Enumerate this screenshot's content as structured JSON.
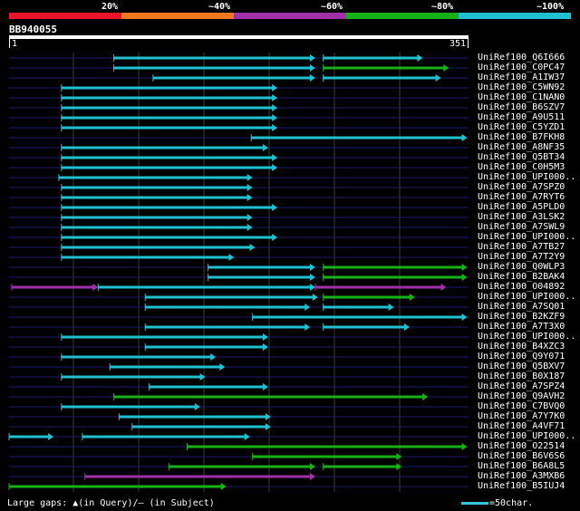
{
  "colors": {
    "c20": "#e8142c",
    "c40": "#f07820",
    "c60": "#a030a8",
    "c80": "#18b018",
    "c100": "#20c0d0",
    "query": "#ffffff",
    "background": "#000000",
    "hit_line": "#1a1a6a",
    "grid": "#3a3a3a"
  },
  "scale": {
    "labels": [
      "20%",
      "~40%",
      "~60%",
      "~80%",
      "~100%"
    ]
  },
  "query": {
    "name": "BB940055",
    "start": "1",
    "end": "351"
  },
  "hits": [
    {
      "label": "UniRef100_Q6I666",
      "segs": [
        [
          80,
          234,
          "c100"
        ],
        [
          240,
          316,
          "c100"
        ]
      ]
    },
    {
      "label": "UniRef100_C0PC47",
      "segs": [
        [
          80,
          234,
          "c100"
        ],
        [
          240,
          336,
          "c80"
        ]
      ]
    },
    {
      "label": "UniRef100_A1IW37",
      "segs": [
        [
          110,
          234,
          "c100"
        ],
        [
          240,
          330,
          "c100"
        ]
      ]
    },
    {
      "label": "UniRef100_C5WN92",
      "segs": [
        [
          40,
          205,
          "c100"
        ]
      ]
    },
    {
      "label": "UniRef100_C1NAN0",
      "segs": [
        [
          40,
          205,
          "c100"
        ]
      ]
    },
    {
      "label": "UniRef100_B6SZV7",
      "segs": [
        [
          40,
          205,
          "c100"
        ]
      ]
    },
    {
      "label": "UniRef100_A9U511",
      "segs": [
        [
          40,
          205,
          "c100"
        ]
      ]
    },
    {
      "label": "UniRef100_C5YZD1",
      "segs": [
        [
          40,
          205,
          "c100"
        ]
      ]
    },
    {
      "label": "UniRef100_B7FKH8",
      "segs": [
        [
          185,
          350,
          "c100"
        ]
      ]
    },
    {
      "label": "UniRef100_A8NF35",
      "segs": [
        [
          40,
          198,
          "c100"
        ]
      ]
    },
    {
      "label": "UniRef100_Q5BT34",
      "segs": [
        [
          40,
          205,
          "c100"
        ]
      ]
    },
    {
      "label": "UniRef100_C0H5M3",
      "segs": [
        [
          40,
          205,
          "c100"
        ]
      ]
    },
    {
      "label": "UniRef100_UPI000..",
      "segs": [
        [
          38,
          186,
          "c100"
        ]
      ]
    },
    {
      "label": "UniRef100_A7SPZ0",
      "segs": [
        [
          40,
          186,
          "c100"
        ]
      ]
    },
    {
      "label": "UniRef100_A7RYT6",
      "segs": [
        [
          40,
          186,
          "c100"
        ]
      ]
    },
    {
      "label": "UniRef100_A5PLD0",
      "segs": [
        [
          40,
          205,
          "c100"
        ]
      ]
    },
    {
      "label": "UniRef100_A3LSK2",
      "segs": [
        [
          40,
          186,
          "c100"
        ]
      ]
    },
    {
      "label": "UniRef100_A7SWL9",
      "segs": [
        [
          40,
          186,
          "c100"
        ]
      ]
    },
    {
      "label": "UniRef100_UPI000..",
      "segs": [
        [
          40,
          205,
          "c100"
        ]
      ]
    },
    {
      "label": "UniRef100_A7TB27",
      "segs": [
        [
          40,
          188,
          "c100"
        ]
      ]
    },
    {
      "label": "UniRef100_A7T2Y9",
      "segs": [
        [
          40,
          172,
          "c100"
        ]
      ]
    },
    {
      "label": "UniRef100_Q0WLP3",
      "segs": [
        [
          152,
          234,
          "c100"
        ],
        [
          240,
          350,
          "c80"
        ]
      ]
    },
    {
      "label": "UniRef100_B2BAK4",
      "segs": [
        [
          152,
          234,
          "c100"
        ],
        [
          240,
          350,
          "c80"
        ]
      ]
    },
    {
      "label": "UniRef100_O04892",
      "segs": [
        [
          2,
          68,
          "c60"
        ],
        [
          68,
          234,
          "c100"
        ],
        [
          234,
          334,
          "c60"
        ]
      ]
    },
    {
      "label": "UniRef100_UPI000..",
      "segs": [
        [
          104,
          236,
          "c100"
        ],
        [
          240,
          310,
          "c80"
        ]
      ]
    },
    {
      "label": "UniRef100_A7SQ01",
      "segs": [
        [
          104,
          230,
          "c100"
        ],
        [
          240,
          294,
          "c100"
        ]
      ]
    },
    {
      "label": "UniRef100_B2KZF9",
      "segs": [
        [
          186,
          350,
          "c100"
        ]
      ]
    },
    {
      "label": "UniRef100_A7T3X0",
      "segs": [
        [
          104,
          230,
          "c100"
        ],
        [
          240,
          306,
          "c100"
        ]
      ]
    },
    {
      "label": "UniRef100_UPI000..",
      "segs": [
        [
          40,
          198,
          "c100"
        ]
      ]
    },
    {
      "label": "UniRef100_B4XZC3",
      "segs": [
        [
          104,
          198,
          "c100"
        ]
      ]
    },
    {
      "label": "UniRef100_Q9Y071",
      "segs": [
        [
          40,
          158,
          "c100"
        ]
      ]
    },
    {
      "label": "UniRef100_Q5BXV7",
      "segs": [
        [
          77,
          165,
          "c100"
        ]
      ]
    },
    {
      "label": "UniRef100_B0X187",
      "segs": [
        [
          40,
          150,
          "c100"
        ]
      ]
    },
    {
      "label": "UniRef100_A7SPZ4",
      "segs": [
        [
          107,
          198,
          "c100"
        ]
      ]
    },
    {
      "label": "UniRef100_Q9AVH2",
      "segs": [
        [
          80,
          320,
          "c80"
        ]
      ]
    },
    {
      "label": "UniRef100_C7BVQ0",
      "segs": [
        [
          40,
          146,
          "c100"
        ]
      ]
    },
    {
      "label": "UniRef100_A7Y7K0",
      "segs": [
        [
          84,
          200,
          "c100"
        ]
      ]
    },
    {
      "label": "UniRef100_A4VF71",
      "segs": [
        [
          94,
          200,
          "c100"
        ]
      ]
    },
    {
      "label": "UniRef100_UPI000..",
      "segs": [
        [
          0,
          34,
          "c100"
        ],
        [
          56,
          184,
          "c100"
        ]
      ]
    },
    {
      "label": "UniRef100_O22514",
      "segs": [
        [
          136,
          350,
          "c80"
        ]
      ]
    },
    {
      "label": "UniRef100_B6V6S6",
      "segs": [
        [
          186,
          300,
          "c80"
        ]
      ]
    },
    {
      "label": "UniRef100_B6A8L5",
      "segs": [
        [
          122,
          234,
          "c80"
        ],
        [
          240,
          300,
          "c80"
        ]
      ]
    },
    {
      "label": "UniRef100_A3MXB6",
      "segs": [
        [
          58,
          234,
          "c60"
        ]
      ]
    },
    {
      "label": "UniRef100_B5IUJ4",
      "segs": [
        [
          0,
          166,
          "c80"
        ]
      ]
    }
  ],
  "legend": {
    "gaps": "Large gaps: ▲(in Query)/– (in Subject)",
    "scale": "=50char."
  }
}
